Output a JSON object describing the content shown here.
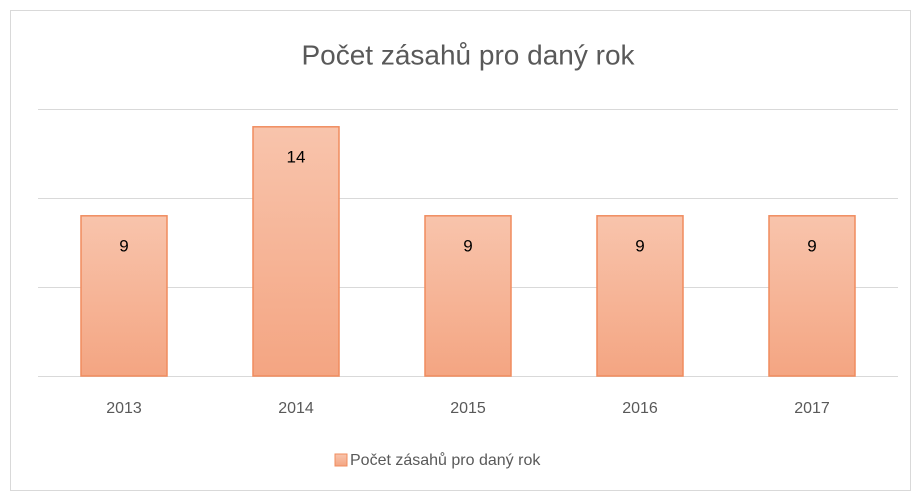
{
  "chart_data": {
    "type": "bar",
    "title": "Počet zásahů pro daný rok",
    "categories": [
      "2013",
      "2014",
      "2015",
      "2016",
      "2017"
    ],
    "series": [
      {
        "name": "Počet zásahů pro daný rok",
        "color": "#f4a582",
        "values": [
          9,
          14,
          9,
          9,
          9
        ]
      }
    ],
    "ylim": [
      0,
      15
    ],
    "yticks": [
      0,
      5,
      10,
      15
    ],
    "grid": true,
    "legend": "bottom"
  }
}
